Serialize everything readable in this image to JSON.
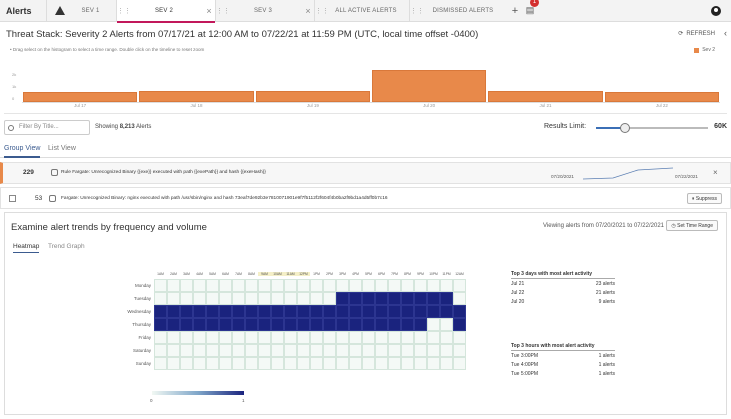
{
  "app": {
    "title": "Alerts"
  },
  "tabs": [
    {
      "label": "SEV 1"
    },
    {
      "label": "SEV 2"
    },
    {
      "label": "SEV 3"
    },
    {
      "label": "ALL ACTIVE ALERTS"
    },
    {
      "label": "DISMISSED ALERTS"
    }
  ],
  "notifications": {
    "count": "1"
  },
  "header": {
    "title": "Threat Stack: Severity 2 Alerts from 07/17/21 at 12:00 AM to 07/22/21 at 11:59 PM (UTC, local time offset -0400)",
    "refresh_label": "REFRESH"
  },
  "histogram": {
    "note": "• Drag select on the histogram to select a time range. Double click on the timeline to reset zoom",
    "y_ticks": [
      "2k",
      "1k",
      "0"
    ]
  },
  "chart_data": {
    "type": "bar",
    "categories": [
      "Jul 17",
      "Jul 18",
      "Jul 19",
      "Jul 20",
      "Jul 21",
      "Jul 22"
    ],
    "series": [
      {
        "name": "Sev 2",
        "values": [
          430,
          470,
          470,
          1350,
          440,
          400
        ],
        "color": "#e8894a"
      }
    ],
    "ylim": [
      0,
      2000
    ],
    "legend": "top-right"
  },
  "filter": {
    "placeholder": "Filter By Title...",
    "showing_prefix": "Showing",
    "showing_count": "8,213",
    "showing_suffix": "Alerts"
  },
  "results_limit": {
    "label": "Results Limit:",
    "value": "60K",
    "fraction": 0.25
  },
  "view_tabs": [
    "Group View",
    "List View"
  ],
  "group_row": {
    "count": "229",
    "rule": "Rule Fargate: Unrecognized Binary {{exe}} executed with path {{exePath}} and hash {{exeHash}}",
    "date_from": "07/20/2021",
    "date_to": "07/22/2021"
  },
  "alert_row": {
    "count": "53",
    "text": "Fargate: Unrecognized Binary: nginx executed with path /usr/sbin/nginx and hash 73eaf7de92b3e7810071901e9f7f5112f2f604f4b0ba2f9bd1a4d5ff0b7c16",
    "suppress_label": "Suppress"
  },
  "trends": {
    "title": "Examine alert trends by frequency and volume",
    "viewing": "Viewing alerts from 07/20/2021 to 07/22/2021",
    "set_time_label": "Set Time Range",
    "subtabs": [
      "Heatmap",
      "Trend Graph"
    ]
  },
  "heatmap": {
    "hours": [
      "1AM",
      "2AM",
      "3AM",
      "4AM",
      "5AM",
      "6AM",
      "7AM",
      "8AM",
      "9AM",
      "10AM",
      "11AM",
      "12PM",
      "1PM",
      "2PM",
      "3PM",
      "4PM",
      "5PM",
      "6PM",
      "7PM",
      "8PM",
      "9PM",
      "10PM",
      "11PM",
      "12AM"
    ],
    "days": [
      "Monday",
      "Tuesday",
      "Wednesday",
      "Thursday",
      "Friday",
      "Saturday",
      "Sunday"
    ],
    "values": [
      [
        0,
        0,
        0,
        0,
        0,
        0,
        0,
        0,
        0,
        0,
        0,
        0,
        0,
        0,
        0,
        0,
        0,
        0,
        0,
        0,
        0,
        0,
        0,
        0
      ],
      [
        0,
        0,
        0,
        0,
        0,
        0,
        0,
        0,
        0,
        0,
        0,
        0,
        0,
        0,
        1,
        1,
        1,
        1,
        1,
        1,
        1,
        1,
        1,
        0
      ],
      [
        1,
        1,
        1,
        1,
        1,
        1,
        1,
        1,
        1,
        1,
        1,
        1,
        1,
        1,
        1,
        1,
        1,
        1,
        1,
        1,
        1,
        1,
        1,
        1
      ],
      [
        1,
        1,
        1,
        1,
        1,
        1,
        1,
        1,
        1,
        1,
        1,
        1,
        1,
        1,
        1,
        1,
        1,
        1,
        1,
        1,
        1,
        0,
        0,
        1
      ],
      [
        0,
        0,
        0,
        0,
        0,
        0,
        0,
        0,
        0,
        0,
        0,
        0,
        0,
        0,
        0,
        0,
        0,
        0,
        0,
        0,
        0,
        0,
        0,
        0
      ],
      [
        0,
        0,
        0,
        0,
        0,
        0,
        0,
        0,
        0,
        0,
        0,
        0,
        0,
        0,
        0,
        0,
        0,
        0,
        0,
        0,
        0,
        0,
        0,
        0
      ],
      [
        0,
        0,
        0,
        0,
        0,
        0,
        0,
        0,
        0,
        0,
        0,
        0,
        0,
        0,
        0,
        0,
        0,
        0,
        0,
        0,
        0,
        0,
        0,
        0
      ]
    ],
    "scale_min": "0",
    "scale_max": "1"
  },
  "top_days": {
    "title": "Top 3 days with most alert activity",
    "rows": [
      [
        "Jul 21",
        "23 alerts"
      ],
      [
        "Jul 22",
        "21 alerts"
      ],
      [
        "Jul 20",
        "9 alerts"
      ]
    ]
  },
  "top_hours": {
    "title": "Top 3 hours with most alert activity",
    "rows": [
      [
        "Tue 3:00PM",
        "1 alerts"
      ],
      [
        "Tue 4:00PM",
        "1 alerts"
      ],
      [
        "Tue 5:00PM",
        "1 alerts"
      ]
    ]
  }
}
